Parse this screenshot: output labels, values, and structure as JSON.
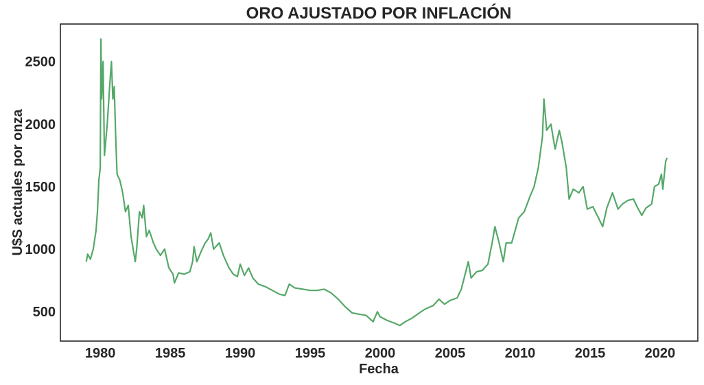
{
  "chart_data": {
    "type": "line",
    "title": "ORO AJUSTADO POR INFLACIÓN",
    "xlabel": "Fecha",
    "ylabel": "U$S actuales por onza",
    "xlim": [
      1977.15,
      2022.7
    ],
    "ylim": [
      265,
      2800
    ],
    "xticks": [
      "1980",
      "1985",
      "1990",
      "1995",
      "2000",
      "2005",
      "2010",
      "2015",
      "2020"
    ],
    "yticks": [
      "500",
      "1000",
      "1500",
      "2000",
      "2500"
    ],
    "grid": false,
    "line_color": "#55a868",
    "x": [
      1979.0,
      1979.1,
      1979.3,
      1979.5,
      1979.7,
      1979.8,
      1979.9,
      1980.0,
      1980.05,
      1980.1,
      1980.2,
      1980.3,
      1980.5,
      1980.7,
      1980.8,
      1980.9,
      1981.0,
      1981.1,
      1981.2,
      1981.4,
      1981.6,
      1981.8,
      1982.0,
      1982.2,
      1982.5,
      1982.6,
      1982.8,
      1983.0,
      1983.1,
      1983.3,
      1983.5,
      1983.8,
      1984.0,
      1984.3,
      1984.6,
      1984.9,
      1985.2,
      1985.3,
      1985.6,
      1986.0,
      1986.4,
      1986.6,
      1986.7,
      1986.9,
      1987.2,
      1987.5,
      1987.7,
      1987.9,
      1988.1,
      1988.5,
      1988.8,
      1989.2,
      1989.5,
      1989.8,
      1990.0,
      1990.3,
      1990.6,
      1990.9,
      1991.3,
      1991.8,
      1992.3,
      1992.8,
      1993.2,
      1993.5,
      1993.9,
      1994.5,
      1995.0,
      1995.5,
      1996.0,
      1996.5,
      1997.0,
      1997.5,
      1998.0,
      1998.5,
      1999.0,
      1999.5,
      1999.8,
      2000.0,
      2000.5,
      2001.0,
      2001.4,
      2001.8,
      2002.3,
      2002.8,
      2003.2,
      2003.8,
      2004.2,
      2004.6,
      2005.0,
      2005.5,
      2005.8,
      2006.3,
      2006.5,
      2006.9,
      2007.3,
      2007.7,
      2008.0,
      2008.2,
      2008.5,
      2008.8,
      2009.0,
      2009.4,
      2009.9,
      2010.3,
      2010.7,
      2011.0,
      2011.3,
      2011.6,
      2011.7,
      2011.9,
      2012.2,
      2012.5,
      2012.8,
      2013.0,
      2013.3,
      2013.5,
      2013.8,
      2014.2,
      2014.5,
      2014.8,
      2015.2,
      2015.6,
      2015.9,
      2016.2,
      2016.6,
      2017.0,
      2017.3,
      2017.7,
      2018.1,
      2018.4,
      2018.7,
      2019.0,
      2019.4,
      2019.6,
      2019.9,
      2020.1,
      2020.2,
      2020.4,
      2020.5
    ],
    "y": [
      900,
      960,
      920,
      1000,
      1150,
      1300,
      1550,
      1650,
      2680,
      2200,
      2500,
      1750,
      2000,
      2350,
      2500,
      2200,
      2300,
      1900,
      1600,
      1550,
      1450,
      1300,
      1350,
      1100,
      900,
      1000,
      1300,
      1250,
      1350,
      1100,
      1150,
      1050,
      1000,
      950,
      1000,
      850,
      800,
      730,
      810,
      800,
      820,
      900,
      1020,
      900,
      980,
      1050,
      1080,
      1130,
      1000,
      1050,
      950,
      850,
      800,
      780,
      880,
      790,
      850,
      770,
      720,
      700,
      670,
      640,
      630,
      720,
      690,
      680,
      670,
      670,
      680,
      650,
      600,
      540,
      490,
      480,
      470,
      420,
      500,
      460,
      430,
      410,
      390,
      420,
      450,
      490,
      520,
      550,
      600,
      560,
      590,
      610,
      680,
      900,
      770,
      820,
      830,
      880,
      1050,
      1180,
      1050,
      900,
      1050,
      1050,
      1250,
      1300,
      1420,
      1500,
      1650,
      1900,
      2200,
      1950,
      2000,
      1800,
      1950,
      1850,
      1650,
      1400,
      1480,
      1450,
      1500,
      1320,
      1340,
      1250,
      1180,
      1330,
      1450,
      1320,
      1360,
      1390,
      1400,
      1330,
      1270,
      1330,
      1360,
      1500,
      1520,
      1600,
      1480,
      1700,
      1730
    ]
  }
}
